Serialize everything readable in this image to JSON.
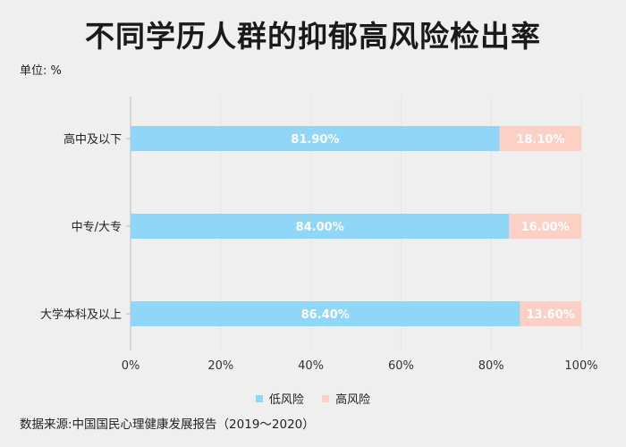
{
  "chart_data": {
    "type": "bar",
    "orientation": "horizontal",
    "stacked": true,
    "title": "不同学历人群的抑郁高风险检出率",
    "unit_label": "单位: %",
    "categories": [
      "高中及以下",
      "中专/大专",
      "大学本科及以上"
    ],
    "series": [
      {
        "name": "低风险",
        "values": [
          81.9,
          84.0,
          86.4
        ],
        "labels": [
          "81.90%",
          "84.00%",
          "86.40%"
        ],
        "color": "#8fd6f7"
      },
      {
        "name": "高风险",
        "values": [
          18.1,
          16.0,
          13.6
        ],
        "labels": [
          "18.10%",
          "16.00%",
          "13.60%"
        ],
        "color": "#fdd0c5"
      }
    ],
    "xlim": [
      0,
      100
    ],
    "x_ticks": [
      "0%",
      "20%",
      "40%",
      "60%",
      "80%",
      "100%"
    ],
    "grid": true,
    "legend_position": "bottom",
    "source": "数据来源:中国国民心理健康发展报告（2019～2020）"
  }
}
